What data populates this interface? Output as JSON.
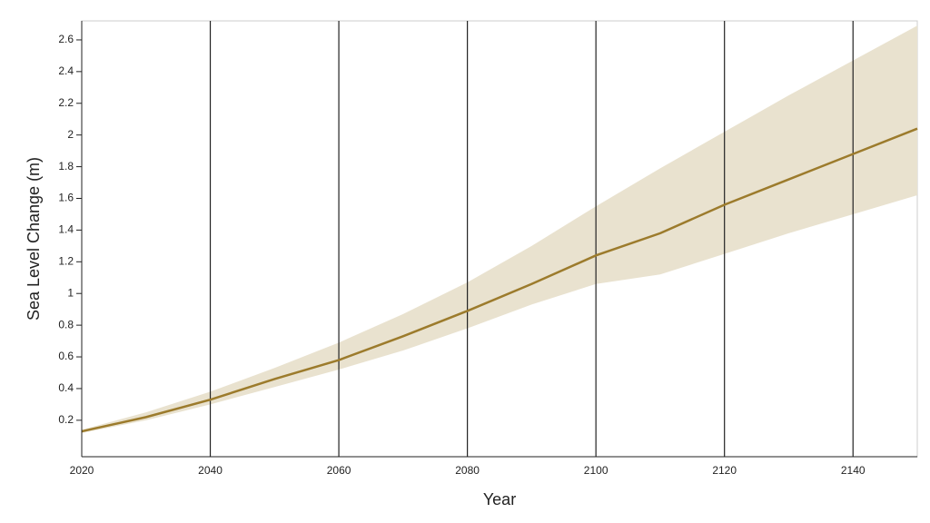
{
  "chart_data": {
    "type": "line",
    "x_label": "Year",
    "y_label": "Sea Level Change (m)",
    "x": [
      2020,
      2030,
      2040,
      2050,
      2060,
      2070,
      2080,
      2090,
      2100,
      2110,
      2120,
      2130,
      2140,
      2150
    ],
    "values": [
      0.13,
      0.22,
      0.33,
      0.46,
      0.58,
      0.73,
      0.89,
      1.06,
      1.24,
      1.38,
      1.56,
      1.72,
      1.88,
      2.04
    ],
    "lower": [
      0.12,
      0.2,
      0.3,
      0.41,
      0.52,
      0.64,
      0.78,
      0.93,
      1.06,
      1.12,
      1.25,
      1.38,
      1.5,
      1.62
    ],
    "upper": [
      0.14,
      0.25,
      0.38,
      0.53,
      0.69,
      0.87,
      1.07,
      1.3,
      1.55,
      1.79,
      2.02,
      2.25,
      2.47,
      2.69
    ],
    "color": "#9c7b2c",
    "band_color": "#e9e2cf",
    "xlim": [
      2020,
      2150
    ],
    "xticks": [
      2020,
      2040,
      2060,
      2080,
      2100,
      2120,
      2140
    ],
    "ylim": [
      -0.03,
      2.72
    ],
    "yticks": [
      0.2,
      0.4,
      0.6,
      0.8,
      1.0,
      1.2,
      1.4,
      1.6,
      1.8,
      2.0,
      2.2,
      2.4,
      2.6
    ],
    "grid": "x"
  }
}
